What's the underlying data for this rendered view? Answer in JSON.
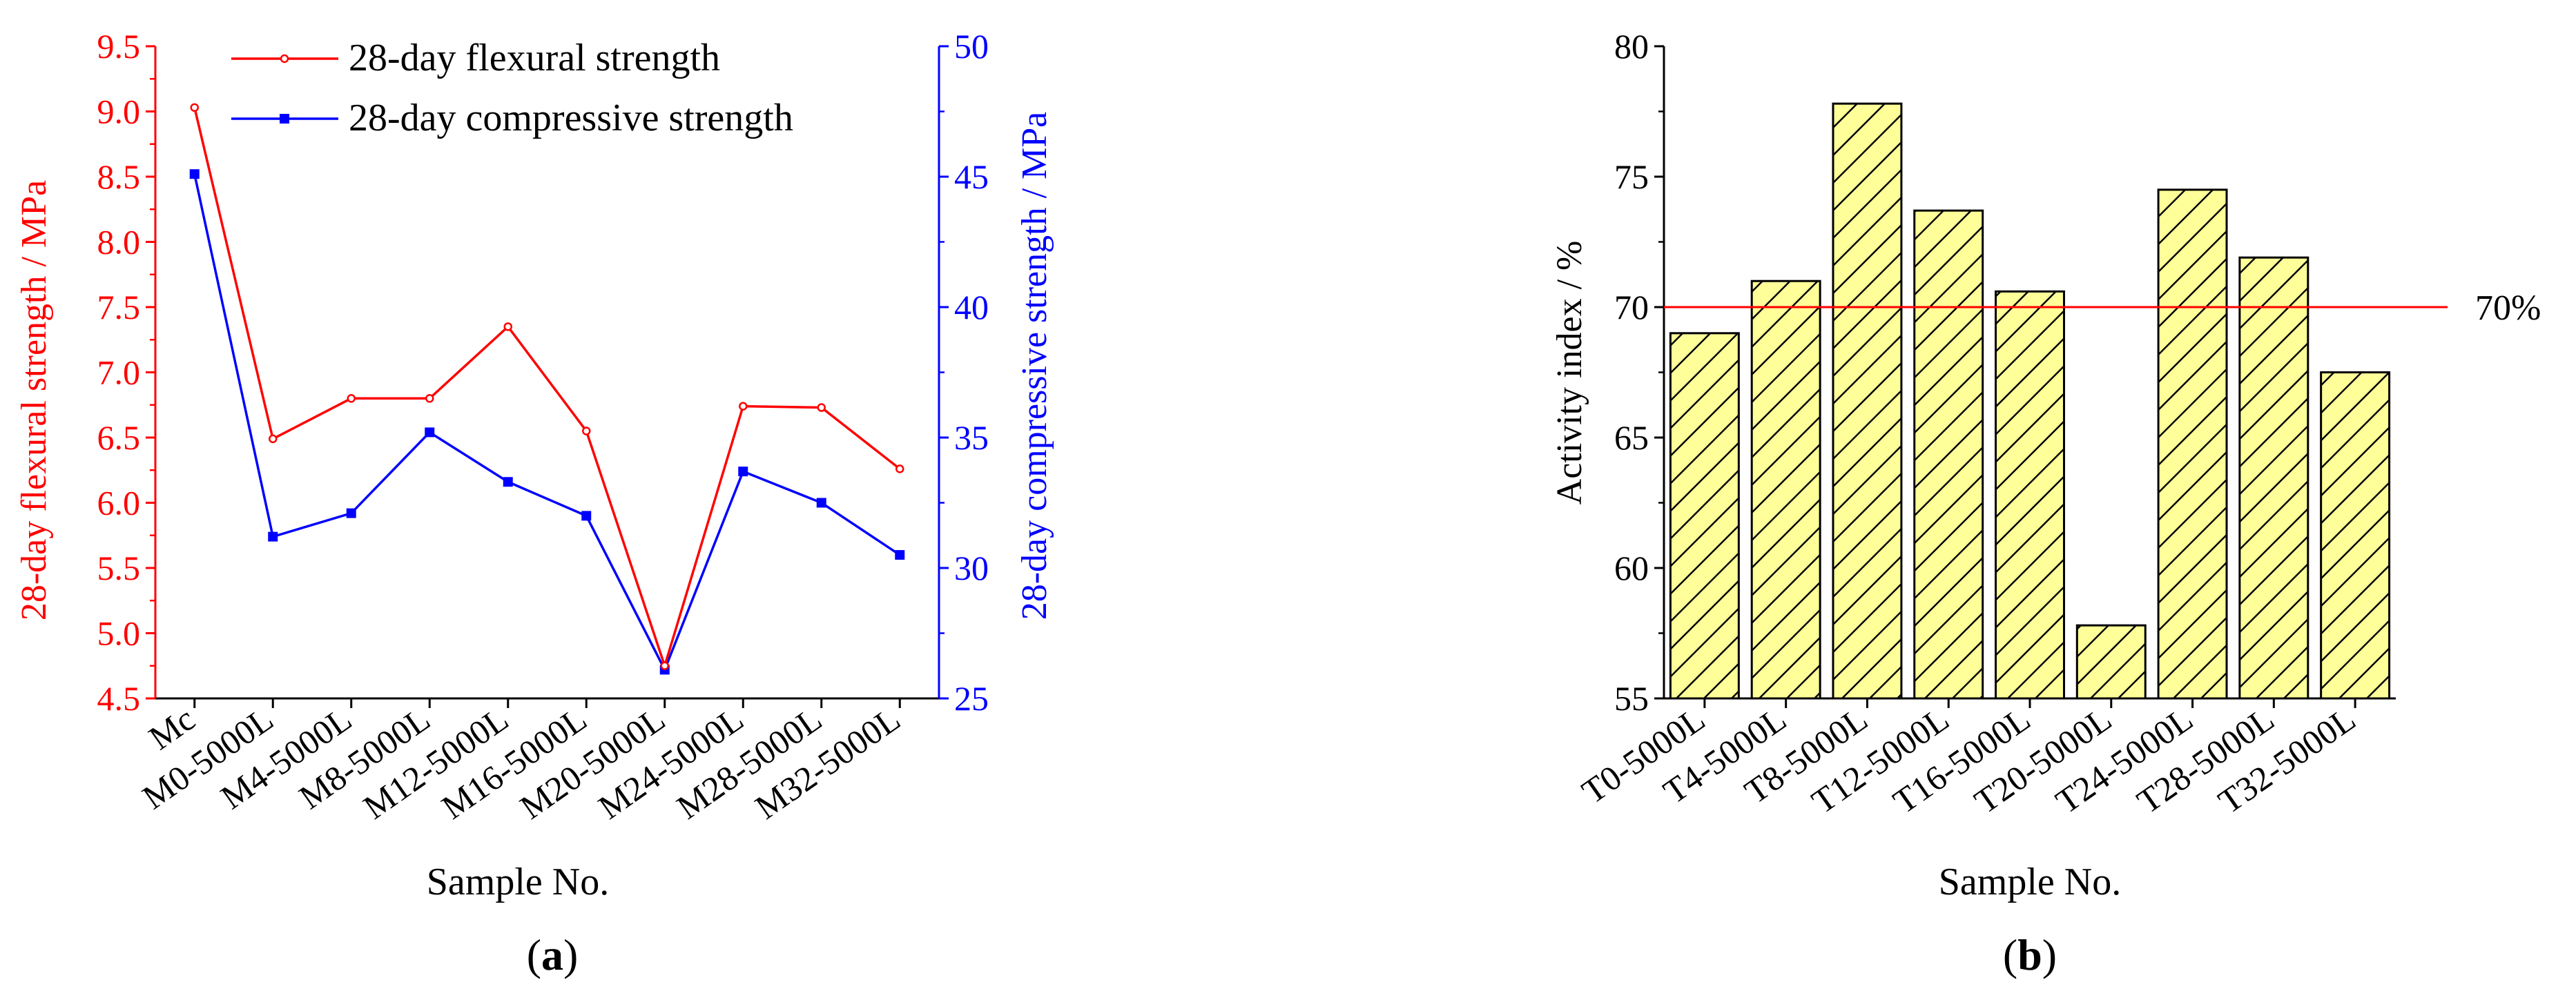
{
  "panels": {
    "a": {
      "label_open": "(",
      "label_letter": "a",
      "label_close": ")"
    },
    "b": {
      "label_open": "(",
      "label_letter": "b",
      "label_close": ")"
    }
  },
  "colors": {
    "flexural": "#ff0000",
    "compressive": "#0000ff",
    "bar_fill": "#ffff99",
    "reference_line": "#ff0000",
    "axis": "#000000"
  },
  "chart_data": [
    {
      "id": "a",
      "type": "line",
      "xlabel": "Sample No.",
      "categories": [
        "Mc",
        "M0-5000L",
        "M4-5000L",
        "M8-5000L",
        "M12-5000L",
        "M16-5000L",
        "M20-5000L",
        "M24-5000L",
        "M28-5000L",
        "M32-5000L"
      ],
      "y_left": {
        "label": "28-day flexural strength / MPa",
        "lim": [
          4.5,
          9.5
        ],
        "ticks": [
          "4.5",
          "5.0",
          "5.5",
          "6.0",
          "6.5",
          "7.0",
          "7.5",
          "8.0",
          "8.5",
          "9.0",
          "9.5"
        ]
      },
      "y_right": {
        "label": "28-day compressive strength / MPa",
        "lim": [
          25,
          50
        ],
        "ticks": [
          "25",
          "30",
          "35",
          "40",
          "45",
          "50"
        ]
      },
      "series": [
        {
          "name": "28-day flexural strength",
          "axis": "left",
          "values": [
            9.03,
            6.49,
            6.8,
            6.8,
            7.35,
            6.55,
            4.75,
            6.74,
            6.73,
            6.26
          ]
        },
        {
          "name": "28-day compressive strength",
          "axis": "right",
          "values": [
            45.1,
            31.2,
            32.1,
            35.2,
            33.3,
            32.0,
            26.1,
            33.7,
            32.5,
            30.5
          ]
        }
      ],
      "legend_position": "top-left"
    },
    {
      "id": "b",
      "type": "bar",
      "xlabel": "Sample No.",
      "ylabel": "Activity index / %",
      "categories": [
        "T0-5000L",
        "T4-5000L",
        "T8-5000L",
        "T12-5000L",
        "T16-5000L",
        "T20-5000L",
        "T24-5000L",
        "T28-5000L",
        "T32-5000L"
      ],
      "values": [
        69.0,
        71.0,
        77.8,
        73.7,
        70.6,
        57.8,
        74.5,
        71.9,
        67.5
      ],
      "ylim": [
        55,
        80
      ],
      "yticks": [
        "55",
        "60",
        "65",
        "70",
        "75",
        "80"
      ],
      "reference": {
        "value": 70,
        "label": "70%"
      }
    }
  ]
}
